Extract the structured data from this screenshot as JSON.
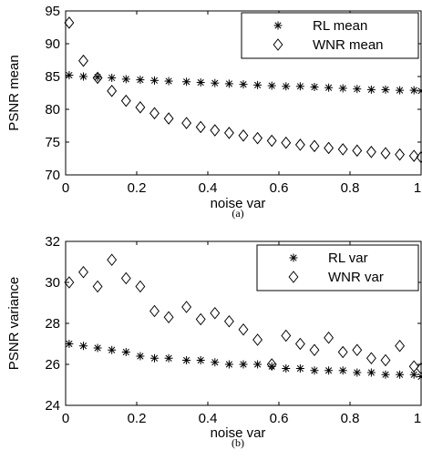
{
  "chart_data": [
    {
      "type": "scatter",
      "caption": "(a)",
      "xlabel": "noise var",
      "ylabel": "PSNR mean",
      "xlim": [
        0,
        1
      ],
      "ylim": [
        70,
        95
      ],
      "xticks": [
        0,
        0.2,
        0.4,
        0.6,
        0.8,
        1
      ],
      "xtick_labels": [
        "0",
        "0.2",
        "0.4",
        "0.6",
        "0.8",
        "1"
      ],
      "yticks": [
        70,
        75,
        80,
        85,
        90,
        95
      ],
      "ytick_labels": [
        "70",
        "75",
        "80",
        "85",
        "90",
        "95"
      ],
      "legend_position": "top-right",
      "x": [
        0.01,
        0.05,
        0.09,
        0.13,
        0.17,
        0.21,
        0.25,
        0.29,
        0.34,
        0.38,
        0.42,
        0.46,
        0.5,
        0.54,
        0.58,
        0.62,
        0.66,
        0.7,
        0.74,
        0.78,
        0.82,
        0.86,
        0.9,
        0.94,
        0.98,
        1.0
      ],
      "series": [
        {
          "name": "RL mean",
          "marker": "asterisk",
          "values": [
            85.2,
            85.0,
            84.9,
            84.8,
            84.6,
            84.5,
            84.4,
            84.3,
            84.2,
            84.1,
            84.0,
            83.9,
            83.8,
            83.7,
            83.6,
            83.5,
            83.5,
            83.4,
            83.3,
            83.2,
            83.1,
            83.0,
            83.0,
            82.9,
            82.9,
            82.8
          ]
        },
        {
          "name": "WNR mean",
          "marker": "diamond",
          "values": [
            93.2,
            87.4,
            84.8,
            82.8,
            81.3,
            80.3,
            79.4,
            78.6,
            77.9,
            77.3,
            76.8,
            76.4,
            76.0,
            75.6,
            75.2,
            74.9,
            74.6,
            74.4,
            74.1,
            73.9,
            73.7,
            73.5,
            73.3,
            73.1,
            72.9,
            72.7
          ]
        }
      ]
    },
    {
      "type": "scatter",
      "caption": "(b)",
      "xlabel": "noise var",
      "ylabel": "PSNR variance",
      "xlim": [
        0,
        1
      ],
      "ylim": [
        24,
        32
      ],
      "xticks": [
        0,
        0.2,
        0.4,
        0.6,
        0.8,
        1
      ],
      "xtick_labels": [
        "0",
        "0.2",
        "0.4",
        "0.6",
        "0.8",
        "1"
      ],
      "yticks": [
        24,
        26,
        28,
        30,
        32
      ],
      "ytick_labels": [
        "24",
        "26",
        "28",
        "30",
        "32"
      ],
      "legend_position": "top-right",
      "x": [
        0.01,
        0.05,
        0.09,
        0.13,
        0.17,
        0.21,
        0.25,
        0.29,
        0.34,
        0.38,
        0.42,
        0.46,
        0.5,
        0.54,
        0.58,
        0.62,
        0.66,
        0.7,
        0.74,
        0.78,
        0.82,
        0.86,
        0.9,
        0.94,
        0.98,
        1.0
      ],
      "series": [
        {
          "name": "RL var",
          "marker": "asterisk",
          "values": [
            27.0,
            26.9,
            26.8,
            26.7,
            26.6,
            26.4,
            26.3,
            26.3,
            26.2,
            26.2,
            26.1,
            26.0,
            26.0,
            26.0,
            25.9,
            25.8,
            25.8,
            25.7,
            25.7,
            25.7,
            25.6,
            25.6,
            25.5,
            25.5,
            25.5,
            25.4
          ]
        },
        {
          "name": "WNR var",
          "marker": "diamond",
          "values": [
            30.0,
            30.5,
            29.8,
            31.1,
            30.2,
            29.8,
            28.6,
            28.3,
            28.8,
            28.2,
            28.5,
            28.1,
            27.7,
            27.2,
            26.0,
            27.4,
            27.0,
            26.7,
            27.3,
            26.6,
            26.7,
            26.3,
            26.2,
            26.9,
            25.9,
            25.8
          ]
        }
      ]
    }
  ]
}
